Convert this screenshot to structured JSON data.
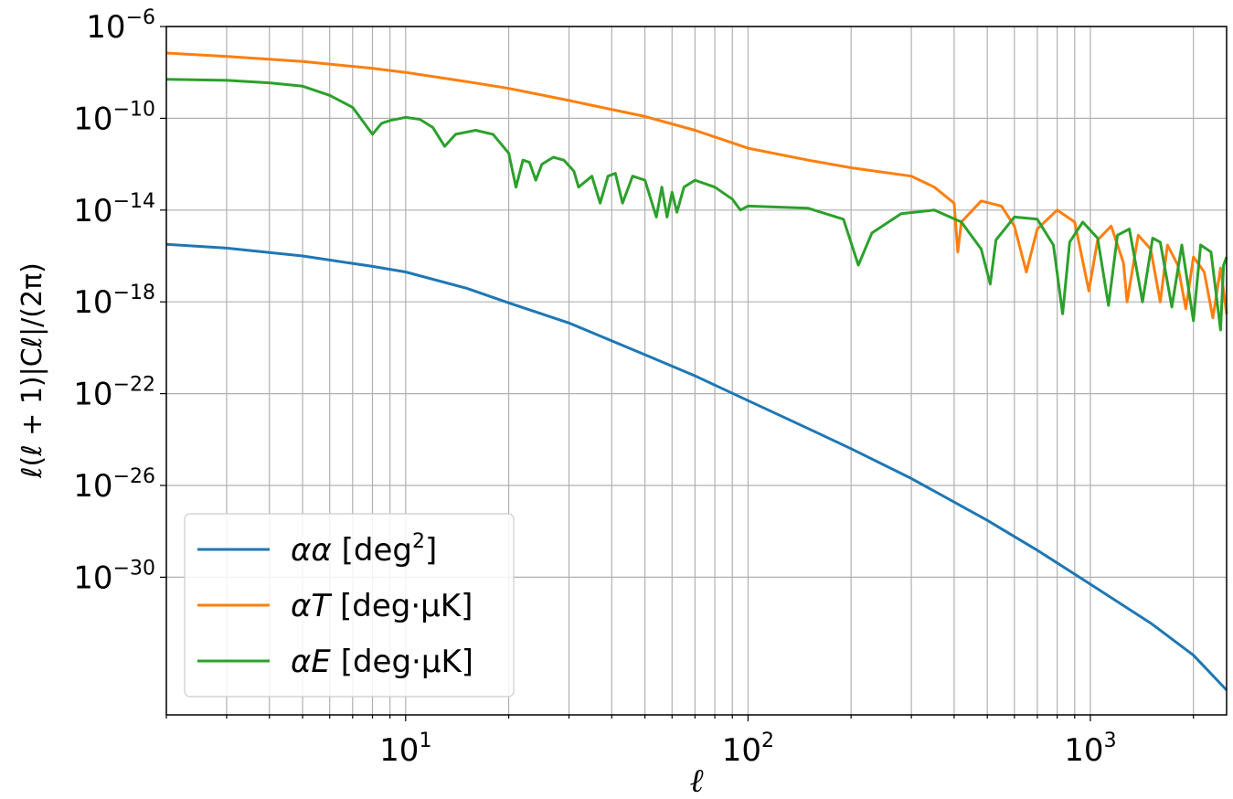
{
  "chart_data": {
    "type": "line",
    "xscale": "log",
    "yscale": "log",
    "xlim": [
      2,
      2500
    ],
    "ylim": [
      1e-36,
      1e-06
    ],
    "grid": true,
    "legend_placement": "lower-left",
    "xlabel": "ℓ",
    "ylabel": "ℓ(ℓ + 1)|Cℓ|/(2π)",
    "x_ticks": [
      {
        "base": "10",
        "exp": "1",
        "value": 10
      },
      {
        "base": "10",
        "exp": "2",
        "value": 100
      },
      {
        "base": "10",
        "exp": "3",
        "value": 1000
      }
    ],
    "y_ticks": [
      {
        "base": "10",
        "exp": "−6",
        "value": -6
      },
      {
        "base": "10",
        "exp": "−10",
        "value": -10
      },
      {
        "base": "10",
        "exp": "−14",
        "value": -14
      },
      {
        "base": "10",
        "exp": "−18",
        "value": -18
      },
      {
        "base": "10",
        "exp": "−22",
        "value": -22
      },
      {
        "base": "10",
        "exp": "−26",
        "value": -26
      },
      {
        "base": "10",
        "exp": "−30",
        "value": -30
      }
    ],
    "series": [
      {
        "legend_parts": [
          "αα",
          " [deg",
          "2",
          "]"
        ],
        "color": "#1f77b4",
        "points": [
          [
            2,
            3.2e-16
          ],
          [
            3,
            2.2e-16
          ],
          [
            5,
            1e-16
          ],
          [
            8,
            3.5e-17
          ],
          [
            10,
            2e-17
          ],
          [
            15,
            4e-18
          ],
          [
            20,
            9e-19
          ],
          [
            30,
            1.2e-19
          ],
          [
            50,
            5e-21
          ],
          [
            70,
            6e-22
          ],
          [
            100,
            5e-23
          ],
          [
            150,
            3e-24
          ],
          [
            200,
            4e-25
          ],
          [
            300,
            2e-26
          ],
          [
            500,
            3e-28
          ],
          [
            700,
            1.5e-29
          ],
          [
            1000,
            5e-31
          ],
          [
            1500,
            1e-32
          ],
          [
            2000,
            4e-34
          ],
          [
            2500,
            1.2e-35
          ]
        ]
      },
      {
        "legend_parts": [
          "αT",
          " [deg·μK]"
        ],
        "color": "#ff7f0e",
        "points": [
          [
            2,
            7e-08
          ],
          [
            3,
            5e-08
          ],
          [
            5,
            3e-08
          ],
          [
            8,
            1.5e-08
          ],
          [
            10,
            1e-08
          ],
          [
            15,
            4e-09
          ],
          [
            20,
            2e-09
          ],
          [
            30,
            6e-10
          ],
          [
            50,
            1.2e-10
          ],
          [
            70,
            3e-11
          ],
          [
            100,
            5e-12
          ],
          [
            150,
            1.5e-12
          ],
          [
            200,
            7e-13
          ],
          [
            300,
            3e-13
          ],
          [
            350,
            1e-13
          ],
          [
            400,
            2e-14
          ],
          [
            410,
            1.5e-16
          ],
          [
            420,
            3e-15
          ],
          [
            480,
            2.5e-14
          ],
          [
            550,
            1.5e-14
          ],
          [
            600,
            2e-15
          ],
          [
            650,
            2e-17
          ],
          [
            700,
            1.5e-15
          ],
          [
            800,
            1e-14
          ],
          [
            900,
            3e-15
          ],
          [
            990,
            3e-18
          ],
          [
            1050,
            5e-16
          ],
          [
            1150,
            2e-15
          ],
          [
            1250,
            5e-17
          ],
          [
            1280,
            1e-18
          ],
          [
            1380,
            8e-16
          ],
          [
            1500,
            2e-16
          ],
          [
            1600,
            1e-18
          ],
          [
            1680,
            3e-16
          ],
          [
            1800,
            4e-17
          ],
          [
            1900,
            5e-19
          ],
          [
            2000,
            9e-17
          ],
          [
            2150,
            2e-17
          ],
          [
            2280,
            2e-19
          ],
          [
            2400,
            3e-17
          ],
          [
            2500,
            3e-19
          ]
        ]
      },
      {
        "legend_parts": [
          "αE",
          " [deg·μK]"
        ],
        "color": "#2ca02c",
        "points": [
          [
            2,
            5e-09
          ],
          [
            3,
            4.5e-09
          ],
          [
            4,
            3.5e-09
          ],
          [
            5,
            2.5e-09
          ],
          [
            6,
            1e-09
          ],
          [
            7,
            3e-10
          ],
          [
            8,
            2e-11
          ],
          [
            8.5,
            6e-11
          ],
          [
            9,
            8e-11
          ],
          [
            10,
            1.1e-10
          ],
          [
            11,
            9e-11
          ],
          [
            12,
            4e-11
          ],
          [
            13,
            6e-12
          ],
          [
            14,
            2e-11
          ],
          [
            16,
            3e-11
          ],
          [
            18,
            2e-11
          ],
          [
            20,
            3e-12
          ],
          [
            21,
            1e-13
          ],
          [
            22,
            1.5e-12
          ],
          [
            23,
            1.2e-12
          ],
          [
            24,
            2e-13
          ],
          [
            25,
            1e-12
          ],
          [
            27,
            2e-12
          ],
          [
            29,
            1.5e-12
          ],
          [
            31,
            5e-13
          ],
          [
            32,
            1e-13
          ],
          [
            35,
            3e-13
          ],
          [
            37,
            2e-14
          ],
          [
            39,
            3e-13
          ],
          [
            41,
            4e-13
          ],
          [
            43,
            2e-14
          ],
          [
            46,
            3e-13
          ],
          [
            50,
            2e-13
          ],
          [
            54,
            5e-15
          ],
          [
            56,
            1e-13
          ],
          [
            58,
            5e-15
          ],
          [
            60,
            6e-14
          ],
          [
            62,
            8e-15
          ],
          [
            65,
            1e-13
          ],
          [
            70,
            2e-13
          ],
          [
            80,
            1e-13
          ],
          [
            90,
            3e-14
          ],
          [
            95,
            1e-14
          ],
          [
            100,
            1.5e-14
          ],
          [
            150,
            1.2e-14
          ],
          [
            190,
            4e-15
          ],
          [
            210,
            4e-17
          ],
          [
            230,
            1e-15
          ],
          [
            280,
            7e-15
          ],
          [
            350,
            1e-14
          ],
          [
            420,
            3e-15
          ],
          [
            480,
            2e-16
          ],
          [
            510,
            6e-18
          ],
          [
            530,
            5e-16
          ],
          [
            600,
            5e-15
          ],
          [
            700,
            4e-15
          ],
          [
            780,
            3e-16
          ],
          [
            830,
            3e-19
          ],
          [
            870,
            4e-16
          ],
          [
            950,
            3e-15
          ],
          [
            1050,
            6e-16
          ],
          [
            1130,
            7e-19
          ],
          [
            1200,
            8e-16
          ],
          [
            1300,
            1.5e-15
          ],
          [
            1420,
            1e-18
          ],
          [
            1520,
            6e-16
          ],
          [
            1600,
            4e-16
          ],
          [
            1730,
            6e-19
          ],
          [
            1850,
            3e-16
          ],
          [
            2000,
            1.5e-19
          ],
          [
            2100,
            3e-16
          ],
          [
            2250,
            1.5e-16
          ],
          [
            2400,
            6e-20
          ],
          [
            2450,
            4e-17
          ],
          [
            2500,
            9e-17
          ]
        ]
      }
    ]
  }
}
